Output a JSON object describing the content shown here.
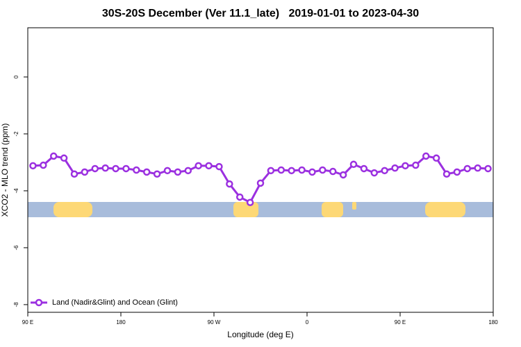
{
  "chart_data": {
    "type": "line",
    "title": "30S-20S December (Ver 11.1_late)   2019-01-01 to 2023-04-30",
    "x_label": "Longitude (deg E)",
    "y_label": "XCO2 - MLO trend (ppm)",
    "x": [
      95,
      105,
      115,
      125,
      135,
      145,
      155,
      165,
      175,
      185,
      195,
      205,
      215,
      225,
      235,
      245,
      255,
      265,
      275,
      285,
      295,
      305,
      315,
      325,
      335,
      345,
      355,
      365,
      375,
      385,
      395,
      405,
      415,
      425,
      435,
      445,
      455,
      465,
      475,
      485,
      495,
      505,
      515,
      525,
      535
    ],
    "series": [
      {
        "name": "Land (Nadir&Glint) and Ocean (Glint)",
        "color": "#9b30e0",
        "values": [
          -3.12,
          -3.1,
          -2.78,
          -2.85,
          -3.41,
          -3.34,
          -3.22,
          -3.2,
          -3.22,
          -3.22,
          -3.27,
          -3.34,
          -3.41,
          -3.29,
          -3.34,
          -3.29,
          -3.12,
          -3.12,
          -3.15,
          -3.76,
          -4.22,
          -4.41,
          -3.73,
          -3.29,
          -3.27,
          -3.29,
          -3.27,
          -3.34,
          -3.27,
          -3.32,
          -3.44,
          -3.07,
          -3.22,
          -3.37,
          -3.29,
          -3.2,
          -3.12,
          -3.1,
          -2.78,
          -2.85,
          -3.41,
          -3.34,
          -3.22,
          -3.2,
          -3.22
        ]
      }
    ],
    "xlim": [
      90,
      540
    ],
    "xticks": [
      {
        "value": 90,
        "label": "90 E"
      },
      180,
      {
        "value": 270,
        "label": "90 W"
      },
      {
        "value": 360,
        "label": "0"
      },
      {
        "value": 450,
        "label": "90 E"
      },
      {
        "value": 540,
        "label": "180"
      }
    ],
    "ylim": [
      -8.27,
      1.73
    ],
    "yticks": [
      0,
      -2,
      -4,
      -6,
      -8
    ],
    "legend": "bottom-left"
  }
}
